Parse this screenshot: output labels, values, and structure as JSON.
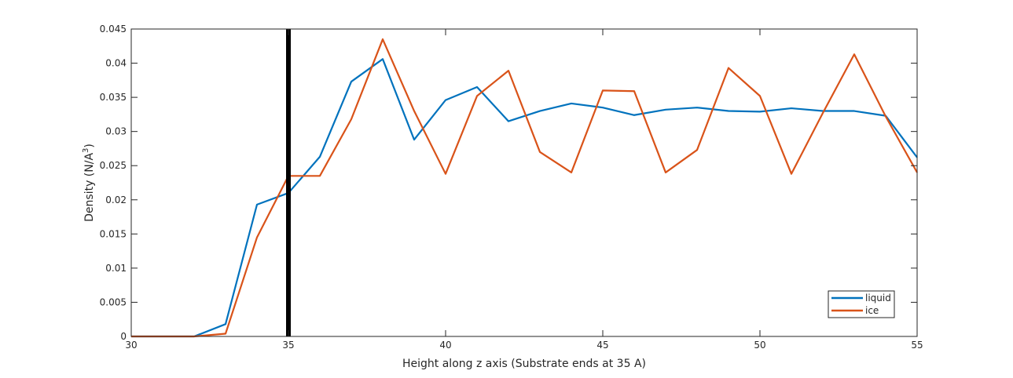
{
  "colors": {
    "liquid": "#0072BD",
    "ice": "#D95319",
    "marker_line": "#000000",
    "axes": "#262626"
  },
  "chart_data": {
    "type": "line",
    "xlabel": "Height along z axis (Substrate ends at 35 A)",
    "ylabel_main": "Density (N/A",
    "ylabel_sup": "3",
    "ylabel_tail": ")",
    "xlim": [
      30,
      55
    ],
    "ylim": [
      0,
      0.045
    ],
    "xticks": [
      30,
      35,
      40,
      45,
      50,
      55
    ],
    "xtick_labels": [
      "30",
      "35",
      "40",
      "45",
      "50",
      "55"
    ],
    "yticks": [
      0,
      0.005,
      0.01,
      0.015,
      0.02,
      0.025,
      0.03,
      0.035,
      0.04,
      0.045
    ],
    "ytick_labels": [
      "0",
      "0.005",
      "0.01",
      "0.015",
      "0.02",
      "0.025",
      "0.03",
      "0.035",
      "0.04",
      "0.045"
    ],
    "grid": false,
    "box": true,
    "legend_position": "bottom-right",
    "vertical_marker_x": 35,
    "x": [
      30,
      31,
      32,
      33,
      34,
      35,
      36,
      37,
      38,
      39,
      40,
      41,
      42,
      43,
      44,
      45,
      46,
      47,
      48,
      49,
      50,
      51,
      52,
      53,
      54,
      55
    ],
    "series": [
      {
        "name": "liquid",
        "color_key": "liquid",
        "values": [
          0,
          0,
          0,
          0.0018,
          0.0193,
          0.021,
          0.0263,
          0.0373,
          0.0406,
          0.0288,
          0.0346,
          0.0365,
          0.0315,
          0.033,
          0.0341,
          0.0335,
          0.0324,
          0.0332,
          0.0335,
          0.033,
          0.0329,
          0.0334,
          0.033,
          0.033,
          0.0323,
          0.0262
        ]
      },
      {
        "name": "ice",
        "color_key": "ice",
        "values": [
          0,
          0,
          0,
          0.0004,
          0.0145,
          0.0235,
          0.0235,
          0.0318,
          0.0435,
          0.033,
          0.0238,
          0.0352,
          0.0389,
          0.027,
          0.024,
          0.036,
          0.0359,
          0.024,
          0.0273,
          0.0393,
          0.0352,
          0.0238,
          0.0327,
          0.0413,
          0.0322,
          0.024
        ]
      }
    ]
  }
}
